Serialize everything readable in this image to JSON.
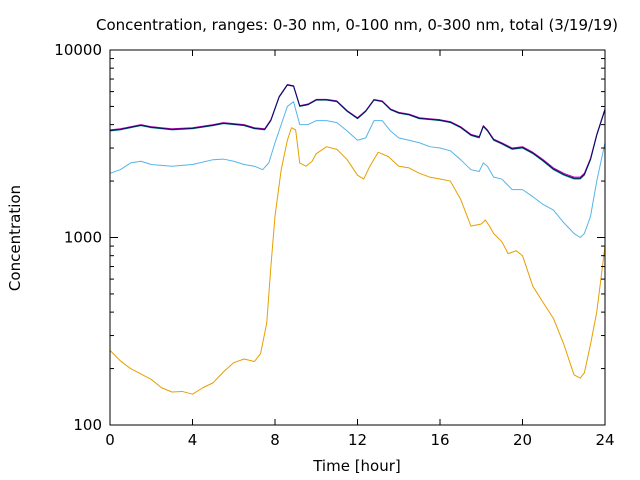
{
  "chart_data": {
    "type": "line",
    "title": "Concentration, ranges: 0-30 nm, 0-100 nm, 0-300 nm, total (3/19/19)",
    "xlabel": "Time [hour]",
    "ylabel": "Concentration",
    "xlim": [
      0,
      24
    ],
    "ylim": [
      100,
      10000
    ],
    "y_scale": "log",
    "grid": false,
    "legend": "none",
    "x_ticks": [
      0,
      4,
      8,
      12,
      16,
      20,
      24
    ],
    "x_tick_labels": [
      "0",
      "4",
      "8",
      "12",
      "16",
      "20",
      "24"
    ],
    "y_ticks": [
      100,
      1000,
      10000
    ],
    "y_tick_labels": [
      "100",
      "1000",
      "10000"
    ],
    "series": [
      {
        "color": "#e69f00",
        "points": [
          [
            0,
            250
          ],
          [
            0.5,
            220
          ],
          [
            1,
            200
          ],
          [
            2,
            175
          ],
          [
            2.5,
            158
          ],
          [
            3,
            150
          ],
          [
            3.5,
            151
          ],
          [
            4,
            146
          ],
          [
            4.5,
            158
          ],
          [
            5,
            168
          ],
          [
            5.5,
            192
          ],
          [
            6,
            215
          ],
          [
            6.5,
            225
          ],
          [
            7,
            218
          ],
          [
            7.3,
            240
          ],
          [
            7.6,
            350
          ],
          [
            7.8,
            700
          ],
          [
            8,
            1300
          ],
          [
            8.3,
            2300
          ],
          [
            8.6,
            3300
          ],
          [
            8.8,
            3850
          ],
          [
            9,
            3750
          ],
          [
            9.2,
            2500
          ],
          [
            9.5,
            2400
          ],
          [
            9.8,
            2550
          ],
          [
            10,
            2800
          ],
          [
            10.5,
            3050
          ],
          [
            11,
            2950
          ],
          [
            11.5,
            2600
          ],
          [
            12,
            2150
          ],
          [
            12.3,
            2050
          ],
          [
            12.6,
            2400
          ],
          [
            13,
            2850
          ],
          [
            13.5,
            2700
          ],
          [
            14,
            2400
          ],
          [
            14.5,
            2350
          ],
          [
            15,
            2200
          ],
          [
            15.5,
            2100
          ],
          [
            16,
            2050
          ],
          [
            16.5,
            2000
          ],
          [
            17,
            1600
          ],
          [
            17.5,
            1150
          ],
          [
            18,
            1180
          ],
          [
            18.2,
            1240
          ],
          [
            18.4,
            1150
          ],
          [
            18.6,
            1050
          ],
          [
            19,
            950
          ],
          [
            19.3,
            820
          ],
          [
            19.7,
            850
          ],
          [
            20,
            800
          ],
          [
            20.5,
            550
          ],
          [
            21,
            450
          ],
          [
            21.5,
            370
          ],
          [
            22,
            270
          ],
          [
            22.5,
            185
          ],
          [
            22.8,
            178
          ],
          [
            23,
            190
          ],
          [
            23.3,
            270
          ],
          [
            23.6,
            400
          ],
          [
            24,
            900
          ]
        ]
      },
      {
        "color": "#56b4e9",
        "points": [
          [
            0,
            2200
          ],
          [
            0.5,
            2300
          ],
          [
            1,
            2500
          ],
          [
            1.5,
            2550
          ],
          [
            2,
            2450
          ],
          [
            3,
            2400
          ],
          [
            4,
            2450
          ],
          [
            5,
            2600
          ],
          [
            5.5,
            2620
          ],
          [
            6,
            2550
          ],
          [
            6.5,
            2450
          ],
          [
            7,
            2400
          ],
          [
            7.4,
            2300
          ],
          [
            7.7,
            2500
          ],
          [
            8,
            3200
          ],
          [
            8.3,
            4000
          ],
          [
            8.6,
            5000
          ],
          [
            8.9,
            5300
          ],
          [
            9.2,
            4000
          ],
          [
            9.6,
            4000
          ],
          [
            10,
            4200
          ],
          [
            10.5,
            4200
          ],
          [
            11,
            4100
          ],
          [
            11.5,
            3700
          ],
          [
            12,
            3300
          ],
          [
            12.4,
            3400
          ],
          [
            12.8,
            4200
          ],
          [
            13.2,
            4200
          ],
          [
            13.6,
            3700
          ],
          [
            14,
            3400
          ],
          [
            14.5,
            3300
          ],
          [
            15,
            3200
          ],
          [
            15.5,
            3050
          ],
          [
            16,
            3000
          ],
          [
            16.5,
            2900
          ],
          [
            17,
            2600
          ],
          [
            17.5,
            2300
          ],
          [
            17.9,
            2250
          ],
          [
            18.1,
            2500
          ],
          [
            18.3,
            2400
          ],
          [
            18.6,
            2100
          ],
          [
            19,
            2050
          ],
          [
            19.5,
            1800
          ],
          [
            20,
            1800
          ],
          [
            20.5,
            1650
          ],
          [
            21,
            1500
          ],
          [
            21.5,
            1400
          ],
          [
            22,
            1200
          ],
          [
            22.5,
            1050
          ],
          [
            22.8,
            1000
          ],
          [
            23,
            1050
          ],
          [
            23.3,
            1300
          ],
          [
            23.6,
            2000
          ],
          [
            24,
            3200
          ]
        ]
      },
      {
        "color": "#009e73",
        "points": [
          [
            0,
            3700
          ],
          [
            0.5,
            3750
          ],
          [
            1,
            3850
          ],
          [
            1.5,
            3950
          ],
          [
            2,
            3850
          ],
          [
            2.5,
            3800
          ],
          [
            3,
            3750
          ],
          [
            4,
            3800
          ],
          [
            5,
            3950
          ],
          [
            5.5,
            4050
          ],
          [
            6,
            4000
          ],
          [
            6.5,
            3950
          ],
          [
            7,
            3800
          ],
          [
            7.5,
            3750
          ],
          [
            7.8,
            4200
          ],
          [
            8.2,
            5600
          ],
          [
            8.6,
            6500
          ],
          [
            8.9,
            6400
          ],
          [
            9.2,
            5000
          ],
          [
            9.6,
            5100
          ],
          [
            10,
            5400
          ],
          [
            10.5,
            5400
          ],
          [
            11,
            5300
          ],
          [
            11.5,
            4700
          ],
          [
            12,
            4300
          ],
          [
            12.4,
            4700
          ],
          [
            12.8,
            5400
          ],
          [
            13.2,
            5300
          ],
          [
            13.6,
            4800
          ],
          [
            14,
            4600
          ],
          [
            14.5,
            4500
          ],
          [
            15,
            4300
          ],
          [
            15.5,
            4250
          ],
          [
            16,
            4200
          ],
          [
            16.5,
            4100
          ],
          [
            17,
            3850
          ],
          [
            17.5,
            3500
          ],
          [
            17.9,
            3400
          ],
          [
            18.1,
            3900
          ],
          [
            18.3,
            3700
          ],
          [
            18.6,
            3300
          ],
          [
            19,
            3150
          ],
          [
            19.5,
            2950
          ],
          [
            20,
            3000
          ],
          [
            20.5,
            2800
          ],
          [
            21,
            2550
          ],
          [
            21.5,
            2300
          ],
          [
            22,
            2150
          ],
          [
            22.5,
            2050
          ],
          [
            22.8,
            2050
          ],
          [
            23,
            2150
          ],
          [
            23.3,
            2600
          ],
          [
            23.6,
            3500
          ],
          [
            24,
            4800
          ]
        ]
      },
      {
        "color": "#b400b4",
        "points": [
          [
            0,
            3750
          ],
          [
            0.5,
            3800
          ],
          [
            1,
            3900
          ],
          [
            1.5,
            4000
          ],
          [
            2,
            3900
          ],
          [
            2.5,
            3850
          ],
          [
            3,
            3800
          ],
          [
            4,
            3850
          ],
          [
            5,
            4000
          ],
          [
            5.5,
            4100
          ],
          [
            6,
            4050
          ],
          [
            6.5,
            4000
          ],
          [
            7,
            3850
          ],
          [
            7.5,
            3800
          ],
          [
            7.8,
            4250
          ],
          [
            8.2,
            5650
          ],
          [
            8.6,
            6550
          ],
          [
            8.9,
            6450
          ],
          [
            9.2,
            5050
          ],
          [
            9.6,
            5150
          ],
          [
            10,
            5450
          ],
          [
            10.5,
            5450
          ],
          [
            11,
            5350
          ],
          [
            11.5,
            4750
          ],
          [
            12,
            4350
          ],
          [
            12.4,
            4750
          ],
          [
            12.8,
            5450
          ],
          [
            13.2,
            5350
          ],
          [
            13.6,
            4850
          ],
          [
            14,
            4650
          ],
          [
            14.5,
            4550
          ],
          [
            15,
            4350
          ],
          [
            15.5,
            4300
          ],
          [
            16,
            4250
          ],
          [
            16.5,
            4150
          ],
          [
            17,
            3900
          ],
          [
            17.5,
            3550
          ],
          [
            17.9,
            3450
          ],
          [
            18.1,
            3950
          ],
          [
            18.3,
            3750
          ],
          [
            18.6,
            3350
          ],
          [
            19,
            3200
          ],
          [
            19.5,
            3000
          ],
          [
            20,
            3050
          ],
          [
            20.5,
            2850
          ],
          [
            21,
            2600
          ],
          [
            21.5,
            2350
          ],
          [
            22,
            2200
          ],
          [
            22.5,
            2100
          ],
          [
            22.8,
            2100
          ],
          [
            23,
            2200
          ],
          [
            23.3,
            2650
          ],
          [
            23.6,
            3550
          ],
          [
            24,
            4850
          ]
        ]
      },
      {
        "color": "#0a0a64",
        "points": [
          [
            0,
            3720
          ],
          [
            0.5,
            3770
          ],
          [
            1,
            3870
          ],
          [
            1.5,
            3970
          ],
          [
            2,
            3870
          ],
          [
            2.5,
            3820
          ],
          [
            3,
            3770
          ],
          [
            4,
            3820
          ],
          [
            5,
            3970
          ],
          [
            5.5,
            4070
          ],
          [
            6,
            4020
          ],
          [
            6.5,
            3970
          ],
          [
            7,
            3820
          ],
          [
            7.5,
            3770
          ],
          [
            7.8,
            4220
          ],
          [
            8.2,
            5620
          ],
          [
            8.6,
            6520
          ],
          [
            8.9,
            6420
          ],
          [
            9.2,
            5020
          ],
          [
            9.6,
            5120
          ],
          [
            10,
            5420
          ],
          [
            10.5,
            5420
          ],
          [
            11,
            5320
          ],
          [
            11.5,
            4720
          ],
          [
            12,
            4320
          ],
          [
            12.4,
            4720
          ],
          [
            12.8,
            5420
          ],
          [
            13.2,
            5320
          ],
          [
            13.6,
            4820
          ],
          [
            14,
            4620
          ],
          [
            14.5,
            4520
          ],
          [
            15,
            4320
          ],
          [
            15.5,
            4270
          ],
          [
            16,
            4220
          ],
          [
            16.5,
            4120
          ],
          [
            17,
            3870
          ],
          [
            17.5,
            3520
          ],
          [
            17.9,
            3420
          ],
          [
            18.1,
            3920
          ],
          [
            18.3,
            3720
          ],
          [
            18.6,
            3320
          ],
          [
            19,
            3170
          ],
          [
            19.5,
            2970
          ],
          [
            20,
            3020
          ],
          [
            20.5,
            2820
          ],
          [
            21,
            2570
          ],
          [
            21.5,
            2320
          ],
          [
            22,
            2170
          ],
          [
            22.5,
            2070
          ],
          [
            22.8,
            2070
          ],
          [
            23,
            2170
          ],
          [
            23.3,
            2620
          ],
          [
            23.6,
            3520
          ],
          [
            24,
            4820
          ]
        ]
      }
    ]
  }
}
